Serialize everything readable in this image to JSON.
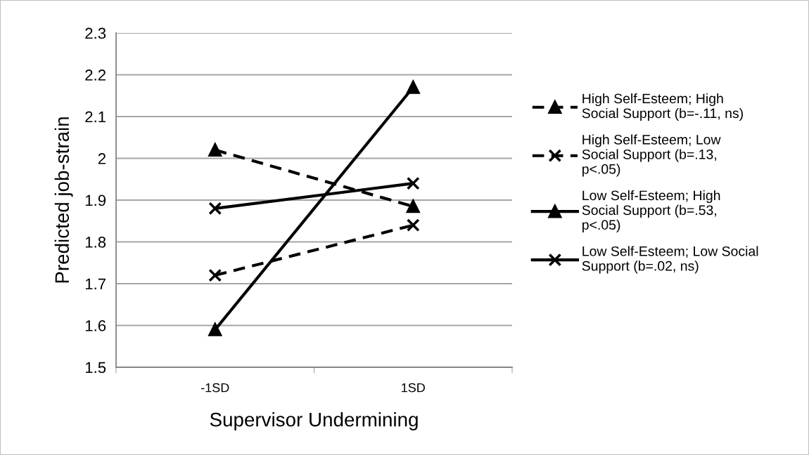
{
  "chart_data": {
    "type": "line",
    "xlabel": "Supervisor Undermining",
    "ylabel": "Predicted job-strain",
    "categories": [
      "-1SD",
      "1SD"
    ],
    "series": [
      {
        "name": "High Self-Esteem; High\nSocial Support (b=-.11, ns)",
        "color": "#000000",
        "values": [
          2.02,
          1.885
        ],
        "marker": "triangle",
        "line_style": "dashed"
      },
      {
        "name": "High Self-Esteem; Low\nSocial Support (b=.13,\np<.05)",
        "color": "#000000",
        "values": [
          1.72,
          1.84
        ],
        "marker": "cross",
        "line_style": "dashed"
      },
      {
        "name": "Low Self-Esteem; High\nSocial Support (b=.53,\np<.05)",
        "color": "#000000",
        "values": [
          1.59,
          2.17
        ],
        "marker": "triangle",
        "line_style": "solid"
      },
      {
        "name": "Low Self-Esteem; Low Social\nSupport (b=.02, ns)",
        "color": "#000000",
        "values": [
          1.88,
          1.94
        ],
        "marker": "cross",
        "line_style": "solid"
      }
    ],
    "ylim": [
      1.5,
      2.3
    ],
    "yticks": [
      1.5,
      1.6,
      1.7,
      1.8,
      1.9,
      2,
      2.1,
      2.2,
      2.3
    ],
    "grid": "y",
    "legend": "right"
  }
}
